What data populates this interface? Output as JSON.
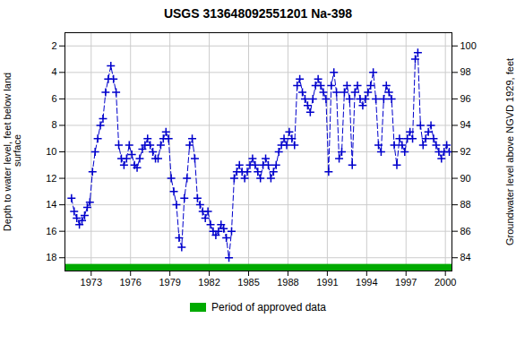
{
  "chart_data": {
    "type": "line",
    "title": "USGS 313648092551201 Na-398",
    "ylabel": "Depth to water level, feet below land\n surface",
    "y2label": "Groundwater level above NGVD 1929, feet",
    "x": [
      1971.5,
      1971.7,
      1971.9,
      1972.1,
      1972.3,
      1972.5,
      1972.7,
      1972.9,
      1973.1,
      1973.3,
      1973.5,
      1973.7,
      1973.9,
      1974.1,
      1974.3,
      1974.5,
      1974.7,
      1974.9,
      1975.1,
      1975.3,
      1975.5,
      1975.7,
      1975.9,
      1976.1,
      1976.3,
      1976.5,
      1976.7,
      1976.9,
      1977.1,
      1977.3,
      1977.5,
      1977.7,
      1977.9,
      1978.1,
      1978.3,
      1978.5,
      1978.7,
      1978.9,
      1979.1,
      1979.3,
      1979.5,
      1979.7,
      1979.9,
      1980.1,
      1980.3,
      1980.5,
      1980.7,
      1980.9,
      1981.1,
      1981.3,
      1981.5,
      1981.7,
      1981.9,
      1982.1,
      1982.3,
      1982.5,
      1982.7,
      1982.9,
      1983.1,
      1983.3,
      1983.5,
      1983.7,
      1983.9,
      1984.1,
      1984.3,
      1984.5,
      1984.7,
      1984.9,
      1985.1,
      1985.3,
      1985.5,
      1985.7,
      1985.9,
      1986.1,
      1986.3,
      1986.5,
      1986.7,
      1986.9,
      1987.1,
      1987.3,
      1987.5,
      1987.7,
      1987.9,
      1988.1,
      1988.3,
      1988.5,
      1988.7,
      1988.9,
      1989.1,
      1989.3,
      1989.5,
      1989.7,
      1989.9,
      1990.1,
      1990.3,
      1990.5,
      1990.7,
      1990.9,
      1991.1,
      1991.3,
      1991.5,
      1991.7,
      1991.9,
      1992.1,
      1992.3,
      1992.5,
      1992.7,
      1992.9,
      1993.1,
      1993.3,
      1993.5,
      1993.7,
      1993.9,
      1994.1,
      1994.3,
      1994.5,
      1994.7,
      1994.9,
      1995.1,
      1995.3,
      1995.5,
      1995.7,
      1995.9,
      1996.1,
      1996.3,
      1996.5,
      1996.7,
      1996.9,
      1997.1,
      1997.3,
      1997.5,
      1997.7,
      1997.9,
      1998.1,
      1998.3,
      1998.5,
      1998.7,
      1998.9,
      1999.1,
      1999.3,
      1999.5,
      1999.7,
      1999.9,
      2000.1,
      2000.3
    ],
    "series": [
      {
        "color": "#0000cc",
        "marker": "plus",
        "line_style": "dashed",
        "values": [
          13.5,
          14.5,
          15.0,
          15.5,
          15.2,
          14.8,
          14.2,
          13.8,
          11.5,
          10.0,
          9.0,
          8.0,
          7.5,
          5.5,
          4.5,
          3.5,
          4.5,
          5.5,
          9.5,
          10.5,
          11.0,
          10.5,
          9.5,
          10.2,
          11.0,
          11.2,
          10.5,
          9.8,
          9.5,
          9.0,
          9.5,
          10.0,
          10.5,
          10.5,
          9.5,
          9.0,
          8.5,
          9.0,
          12.0,
          13.0,
          14.0,
          16.5,
          17.2,
          13.5,
          12.0,
          9.5,
          9.0,
          10.5,
          13.5,
          14.0,
          14.5,
          15.0,
          14.5,
          15.5,
          16.0,
          16.3,
          16.0,
          15.5,
          15.8,
          16.5,
          18.0,
          16.0,
          12.0,
          11.5,
          11.0,
          11.5,
          12.0,
          11.5,
          11.0,
          10.5,
          11.0,
          11.5,
          12.0,
          11.0,
          10.5,
          11.0,
          12.0,
          11.5,
          11.0,
          10.0,
          9.5,
          9.0,
          9.5,
          8.5,
          9.0,
          9.5,
          5.0,
          4.5,
          5.5,
          6.0,
          6.5,
          7.0,
          6.0,
          5.0,
          4.5,
          5.0,
          5.5,
          6.0,
          11.5,
          5.0,
          4.0,
          5.5,
          10.5,
          10.0,
          5.5,
          5.0,
          6.0,
          11.0,
          5.5,
          5.0,
          6.0,
          6.5,
          6.0,
          5.5,
          5.0,
          4.0,
          6.0,
          9.5,
          10.0,
          6.0,
          5.0,
          5.5,
          6.0,
          9.5,
          11.0,
          9.0,
          9.5,
          10.0,
          9.0,
          8.5,
          9.0,
          3.0,
          2.5,
          8.0,
          9.5,
          9.0,
          8.5,
          8.0,
          9.0,
          9.5,
          10.0,
          10.5,
          10.0,
          9.5,
          10.0
        ]
      }
    ],
    "xlim": [
      1971.0,
      2000.5
    ],
    "xticks": [
      1973,
      1976,
      1979,
      1982,
      1985,
      1988,
      1991,
      1994,
      1997,
      2000
    ],
    "ylim": [
      19,
      1
    ],
    "yticks": [
      2,
      4,
      6,
      8,
      10,
      12,
      14,
      16,
      18
    ],
    "y2lim": [
      83,
      101
    ],
    "y2ticks": [
      84,
      86,
      88,
      90,
      92,
      94,
      96,
      98,
      100
    ],
    "grid": true,
    "legend": "bottom",
    "bands": [
      {
        "name": "Period of approved data",
        "color": "#00aa00",
        "y": [
          18.5,
          19.0
        ]
      }
    ]
  }
}
